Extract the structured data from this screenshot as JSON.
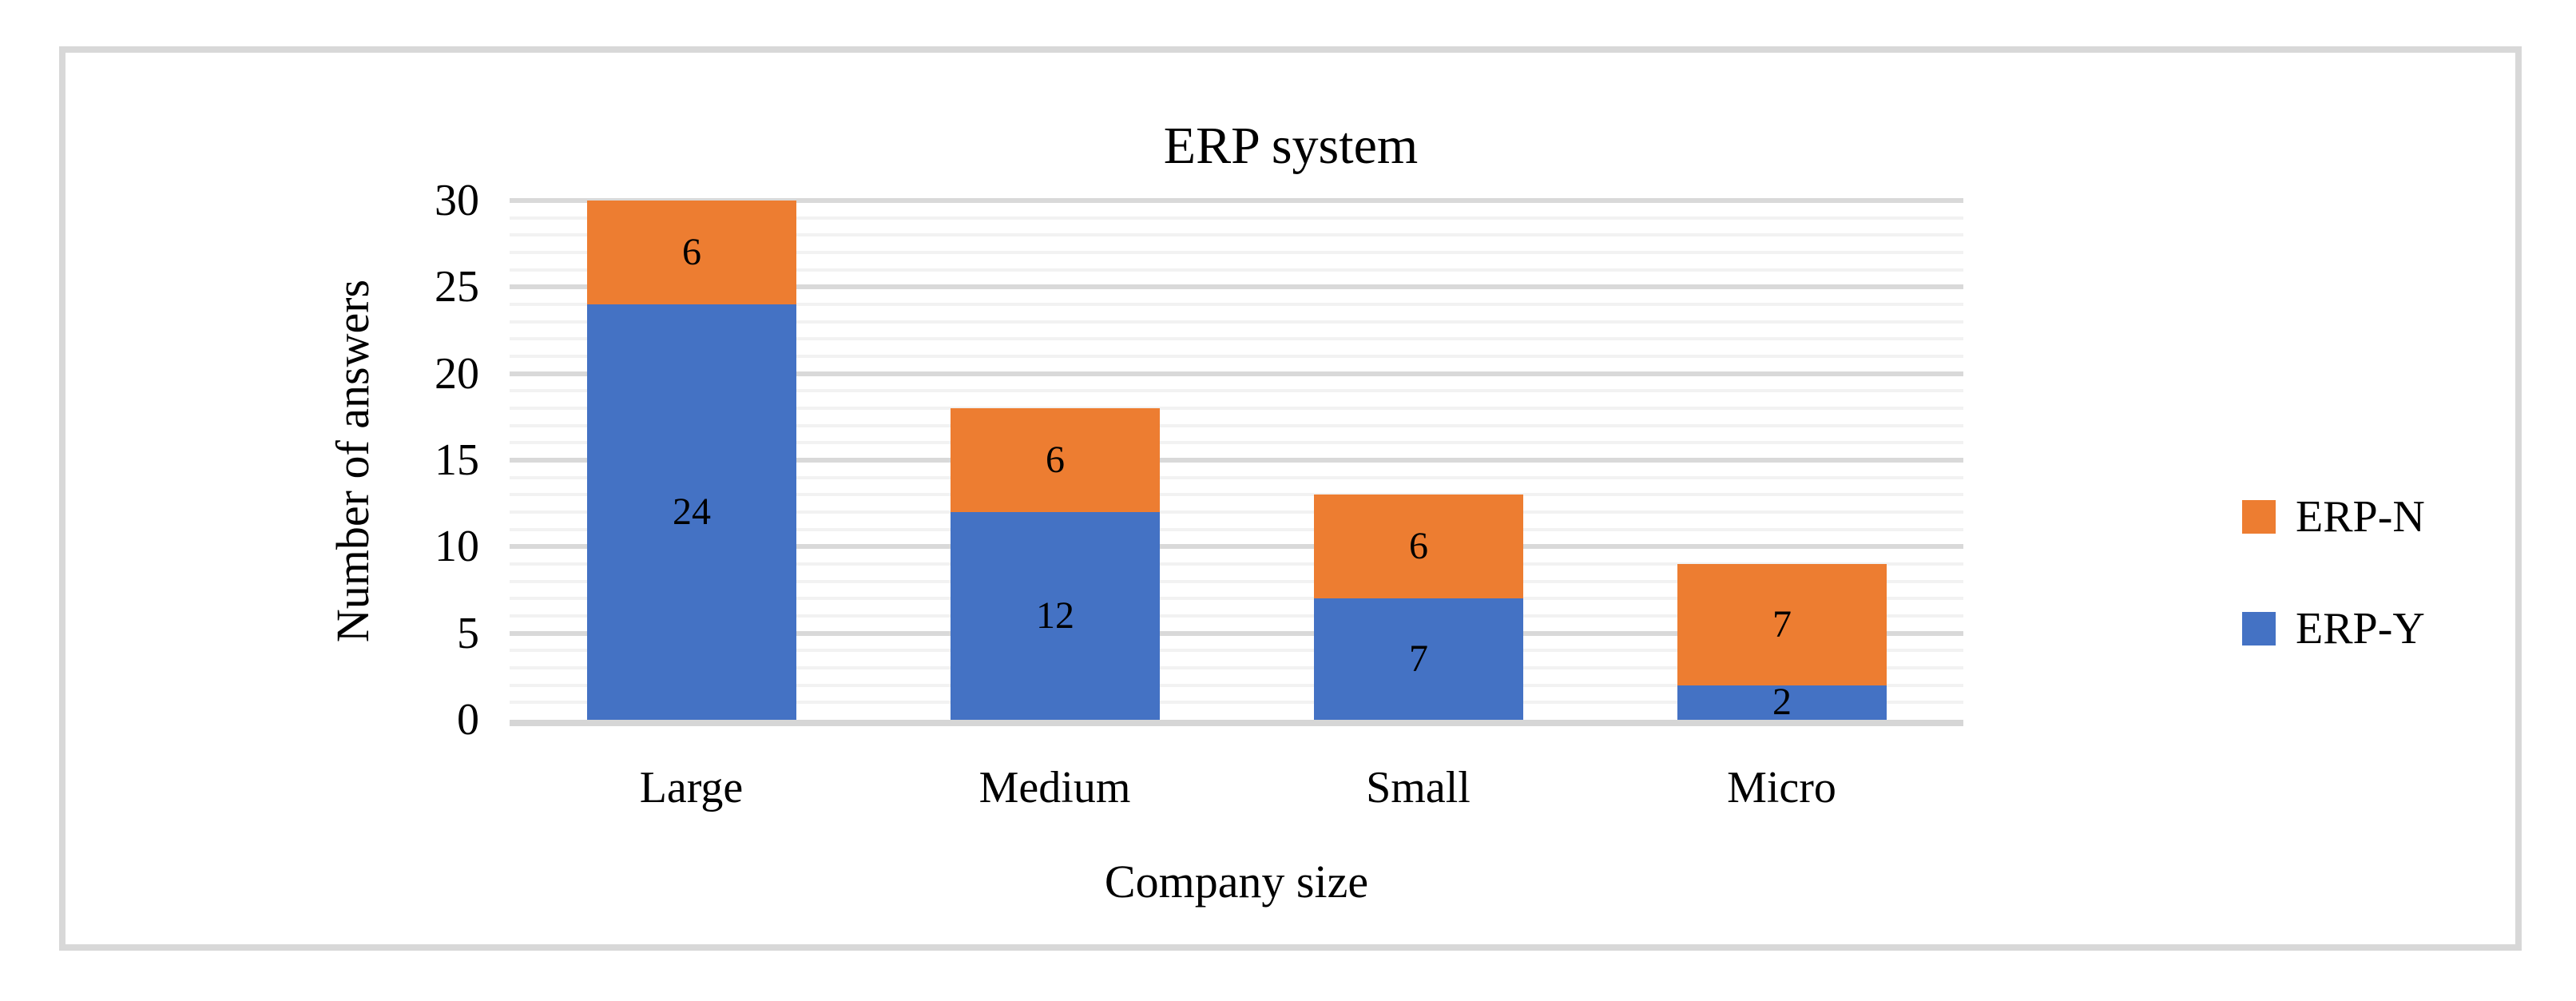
{
  "chart_data": {
    "type": "bar",
    "stacked": true,
    "title": "ERP system",
    "xlabel": "Company size",
    "ylabel": "Number of answers",
    "categories": [
      "Large",
      "Medium",
      "Small",
      "Micro"
    ],
    "series": [
      {
        "name": "ERP-Y",
        "color": "#4472C4",
        "values": [
          24,
          12,
          7,
          2
        ]
      },
      {
        "name": "ERP-N",
        "color": "#ED7D31",
        "values": [
          6,
          6,
          6,
          7
        ]
      }
    ],
    "stack_totals": [
      30,
      18,
      13,
      9
    ],
    "data_labels_shown": [
      24,
      6,
      12,
      6,
      7,
      6,
      2,
      7
    ],
    "ylim": [
      0,
      30
    ],
    "yticks": [
      0,
      5,
      10,
      15,
      20,
      25,
      30
    ],
    "major_grid_step": 5,
    "minor_grid_step": 1,
    "grid": "on",
    "legend_position": "right",
    "legend_order": [
      "ERP-N",
      "ERP-Y"
    ]
  },
  "colors": {
    "erp_y_blue": "#4472C4",
    "erp_n_orange": "#ED7D31",
    "major_gridline": "#D9D9D9",
    "minor_gridline": "#F2F2F2",
    "axis_line": "#D6D6D6",
    "frame_border": "#D8D8D8",
    "text": "#000000",
    "background": "#FFFFFF"
  }
}
